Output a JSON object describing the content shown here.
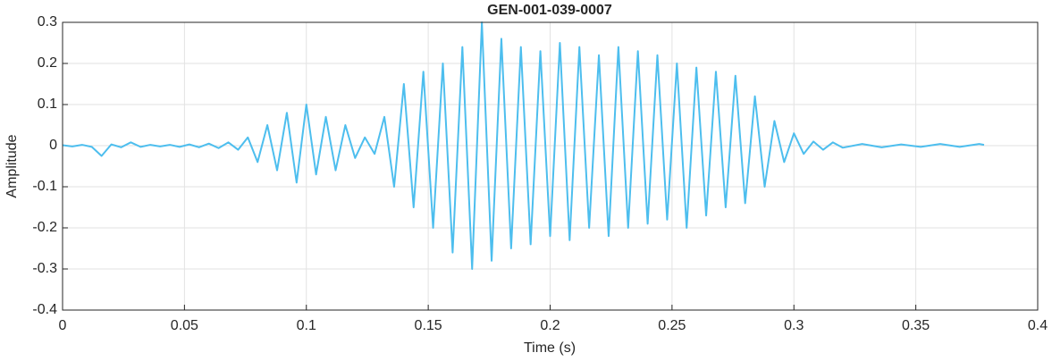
{
  "chart_data": {
    "type": "line",
    "title": "GEN-001-039-0007",
    "x_label": "Time (s)",
    "y_label": "Amplitude",
    "x": [
      0,
      0.004,
      0.008,
      0.012,
      0.016,
      0.02,
      0.024,
      0.028,
      0.032,
      0.036,
      0.04,
      0.044,
      0.048,
      0.052,
      0.056,
      0.06,
      0.064,
      0.068,
      0.072,
      0.076,
      0.08,
      0.084,
      0.088,
      0.092,
      0.096,
      0.1,
      0.104,
      0.108,
      0.112,
      0.116,
      0.12,
      0.124,
      0.128,
      0.132,
      0.136,
      0.14,
      0.144,
      0.148,
      0.152,
      0.156,
      0.16,
      0.164,
      0.168,
      0.172,
      0.176,
      0.18,
      0.184,
      0.188,
      0.192,
      0.196,
      0.2,
      0.204,
      0.208,
      0.212,
      0.216,
      0.22,
      0.224,
      0.228,
      0.232,
      0.236,
      0.24,
      0.244,
      0.248,
      0.252,
      0.256,
      0.26,
      0.264,
      0.268,
      0.272,
      0.276,
      0.28,
      0.284,
      0.288,
      0.292,
      0.296,
      0.3,
      0.304,
      0.308,
      0.312,
      0.316,
      0.32,
      0.328,
      0.336,
      0.344,
      0.352,
      0.36,
      0.368,
      0.376,
      0.378
    ],
    "values": [
      0.001,
      -0.002,
      0.002,
      -0.003,
      -0.025,
      0.003,
      -0.004,
      0.008,
      -0.003,
      0.002,
      -0.002,
      0.002,
      -0.003,
      0.003,
      -0.004,
      0.005,
      -0.006,
      0.008,
      -0.01,
      0.02,
      -0.04,
      0.05,
      -0.06,
      0.08,
      -0.09,
      0.1,
      -0.07,
      0.07,
      -0.06,
      0.05,
      -0.03,
      0.02,
      -0.02,
      0.07,
      -0.1,
      0.15,
      -0.15,
      0.18,
      -0.2,
      0.2,
      -0.26,
      0.24,
      -0.3,
      0.3,
      -0.28,
      0.26,
      -0.25,
      0.24,
      -0.24,
      0.23,
      -0.22,
      0.25,
      -0.23,
      0.24,
      -0.2,
      0.22,
      -0.22,
      0.24,
      -0.2,
      0.23,
      -0.19,
      0.22,
      -0.18,
      0.2,
      -0.2,
      0.19,
      -0.17,
      0.18,
      -0.15,
      0.17,
      -0.14,
      0.12,
      -0.1,
      0.06,
      -0.04,
      0.03,
      -0.02,
      0.01,
      -0.01,
      0.008,
      -0.005,
      0.004,
      -0.004,
      0.003,
      -0.003,
      0.004,
      -0.003,
      0.004,
      0.002
    ],
    "color": "#4dbeee",
    "xlim": [
      0,
      0.4
    ],
    "xticks": [
      0,
      0.05,
      0.1,
      0.15,
      0.2,
      0.25,
      0.3,
      0.35,
      0.4
    ],
    "ylim": [
      -0.4,
      0.3
    ],
    "yticks": [
      -0.4,
      -0.3,
      -0.2,
      -0.1,
      0,
      0.1,
      0.2,
      0.3
    ],
    "grid": true
  }
}
